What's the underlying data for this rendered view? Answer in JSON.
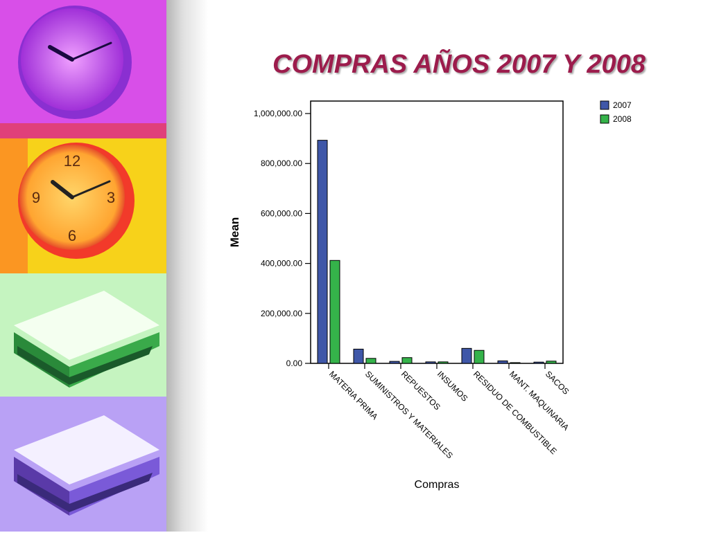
{
  "slide": {
    "title": "COMPRAS  AÑOS 2007 Y 2008"
  },
  "sidebar": {
    "panels": [
      {
        "name": "purple-clock-image",
        "bg": "#d84fe8"
      },
      {
        "name": "yellow-clock-image",
        "bg": "#f7d21a"
      },
      {
        "name": "green-books-image",
        "bg": "#c5f4c0"
      },
      {
        "name": "violet-books-image",
        "bg": "#b9a1f5"
      }
    ]
  },
  "chart_data": {
    "type": "bar",
    "categories": [
      "MATERIA PRIMA",
      "SUMINISTROS Y MATERIALES",
      "REPUESTOS",
      "INSUMOS",
      "RESIDUO DE COMBUSTIBLE",
      "MANT. MAQUINARIA",
      "SACOS"
    ],
    "series": [
      {
        "name": "2007",
        "color": "#3f57a8",
        "values": [
          893000,
          57000,
          8000,
          6000,
          60000,
          10000,
          5000
        ]
      },
      {
        "name": "2008",
        "color": "#35b34a",
        "values": [
          412000,
          20000,
          23000,
          6000,
          52000,
          3000,
          9000
        ]
      }
    ],
    "xlabel": "Compras",
    "ylabel": "Mean",
    "ylim": [
      0,
      1050000
    ],
    "yticks": [
      0,
      200000,
      400000,
      600000,
      800000,
      1000000
    ],
    "ytick_labels": [
      "0.00",
      "200,000.00",
      "400,000.00",
      "600,000.00",
      "800,000.00",
      "1,000,000.00"
    ],
    "grid": false,
    "legend": "top-right outside"
  }
}
